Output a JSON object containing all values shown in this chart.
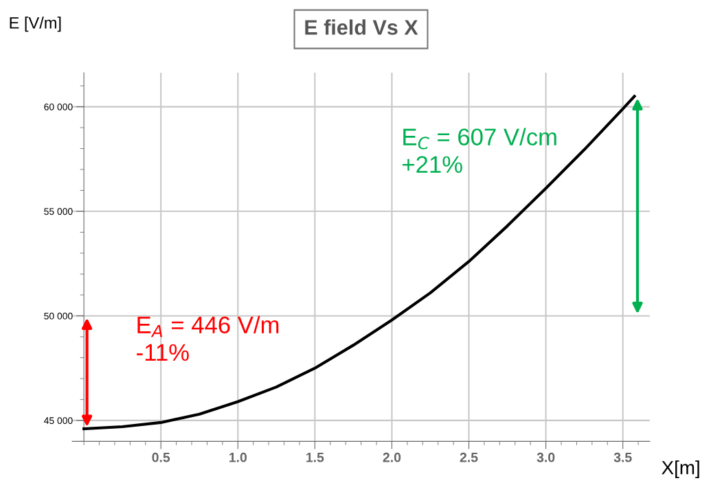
{
  "chart_data": {
    "type": "line",
    "title": "E field Vs X",
    "xlabel": "X[m]",
    "ylabel": "E [V/m]",
    "x": [
      0,
      0.25,
      0.5,
      0.75,
      1.0,
      1.25,
      1.5,
      1.75,
      2.0,
      2.25,
      2.5,
      2.75,
      3.0,
      3.25,
      3.5,
      3.575
    ],
    "series": [
      {
        "color": "#000000",
        "values": [
          44600,
          44700,
          44900,
          45300,
          45900,
          46600,
          47500,
          48600,
          49800,
          51100,
          52600,
          54300,
          56100,
          57950,
          59900,
          60500
        ]
      }
    ],
    "xlim": [
      -0.076,
      3.675
    ],
    "ylim": [
      44000,
      61625
    ],
    "xticks": [
      0.5,
      {
        "value": 1,
        "label": "1.0"
      },
      1.5,
      {
        "value": 2,
        "label": "2.0"
      },
      2.5,
      {
        "value": 3,
        "label": "3.0"
      },
      3.5
    ],
    "yticks": [
      {
        "value": 45000,
        "label": "45 000"
      },
      {
        "value": 50000,
        "label": "50 000"
      },
      {
        "value": 55000,
        "label": "55 000"
      },
      {
        "value": 60000,
        "label": "60 000"
      }
    ],
    "grid": true,
    "marker": "none",
    "line_style": "solid",
    "annotations": [
      "E$_{A}$ = 446 V/m\n-11%",
      "E$_{C}$ = 607 V/cm\n+21%"
    ]
  }
}
